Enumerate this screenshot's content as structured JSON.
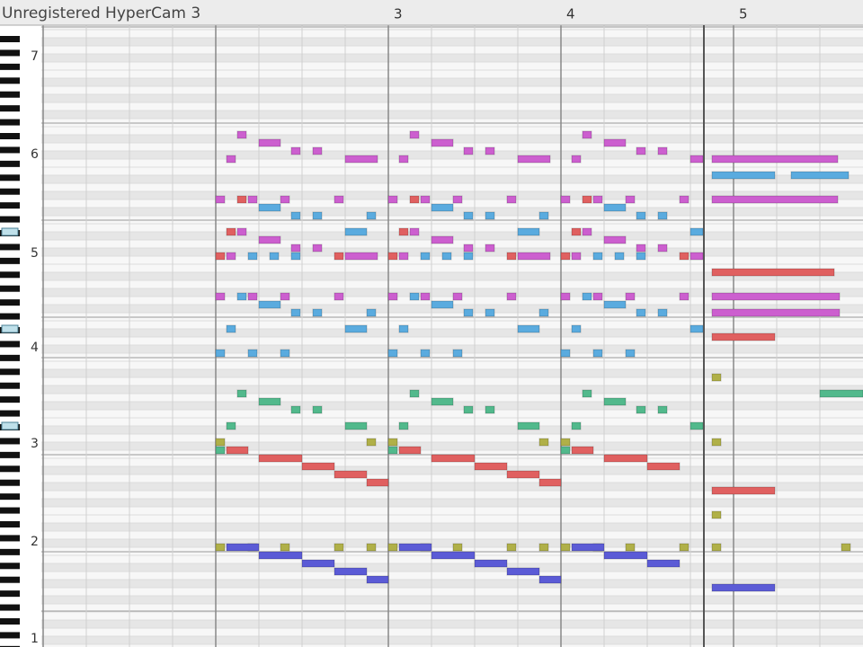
{
  "watermark": "Unregistered HyperCam 3",
  "ruler": {
    "measures": [
      "3",
      "4",
      "5"
    ]
  },
  "keyboard": {
    "octaves": [
      "7",
      "6",
      "5",
      "4",
      "3",
      "2",
      "1"
    ]
  }
}
